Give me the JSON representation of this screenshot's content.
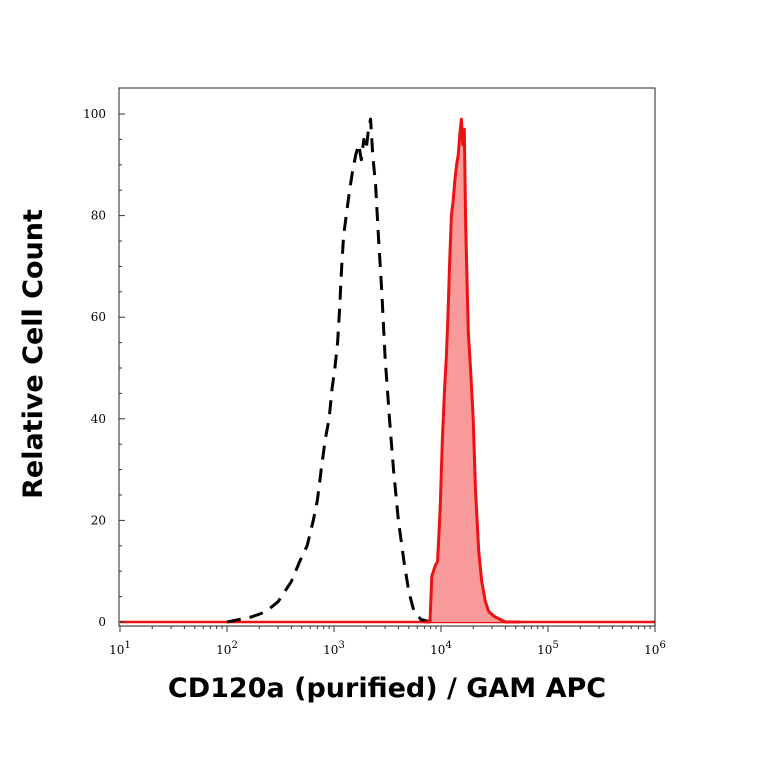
{
  "chart_data": {
    "type": "area",
    "xlabel": "CD120a (purified) / GAM APC",
    "ylabel": "Relative Cell Count",
    "x_scale": "log",
    "xlim": [
      10,
      1000000
    ],
    "ylim": [
      0,
      100
    ],
    "x_ticks": [
      {
        "value": 10,
        "base": "10",
        "exp": "1"
      },
      {
        "value": 100,
        "base": "10",
        "exp": "2"
      },
      {
        "value": 1000,
        "base": "10",
        "exp": "3"
      },
      {
        "value": 10000,
        "base": "10",
        "exp": "4"
      },
      {
        "value": 100000,
        "base": "10",
        "exp": "5"
      },
      {
        "value": 1000000,
        "base": "10",
        "exp": "6"
      }
    ],
    "y_ticks": [
      0,
      20,
      40,
      60,
      80,
      100
    ],
    "grid": false,
    "legend": "none",
    "series": [
      {
        "style": "dashed",
        "color": "#000000",
        "filled": false,
        "x": [
          100,
          130,
          170,
          230,
          300,
          400,
          480,
          560,
          640,
          700,
          760,
          830,
          900,
          960,
          1020,
          1080,
          1130,
          1180,
          1230,
          1300,
          1400,
          1500,
          1600,
          1700,
          1800,
          1900,
          2000,
          2100,
          2200,
          2300,
          2450,
          2600,
          2800,
          3000,
          3300,
          3600,
          4000,
          4500,
          5000,
          5600,
          6500,
          8000
        ],
        "y": [
          0,
          0.5,
          1,
          2,
          4,
          8,
          12,
          15,
          20,
          24,
          30,
          36,
          40,
          46,
          50,
          55,
          62,
          70,
          76,
          80,
          85,
          89,
          92,
          94,
          91,
          95,
          93,
          97,
          99,
          92,
          86,
          76,
          65,
          52,
          40,
          30,
          20,
          12,
          6,
          2,
          0.5,
          0
        ]
      },
      {
        "style": "solid",
        "color": "#ee1111",
        "fill": "#f89a9a",
        "filled": true,
        "x": [
          7000,
          7900,
          8200,
          8800,
          9300,
          9800,
          10300,
          10800,
          11200,
          11600,
          12000,
          12500,
          13000,
          13500,
          14000,
          14500,
          15000,
          15500,
          16000,
          16500,
          17000,
          18000,
          19000,
          20000,
          21000,
          22500,
          24000,
          26000,
          28000,
          32000,
          40000,
          55000
        ],
        "y": [
          0,
          0,
          9,
          11,
          12,
          22,
          36,
          46,
          52,
          60,
          70,
          80,
          83,
          87,
          90,
          92,
          96,
          99,
          94,
          97,
          78,
          57,
          49,
          40,
          26,
          14,
          8,
          4,
          2,
          1,
          0,
          0
        ]
      }
    ]
  }
}
